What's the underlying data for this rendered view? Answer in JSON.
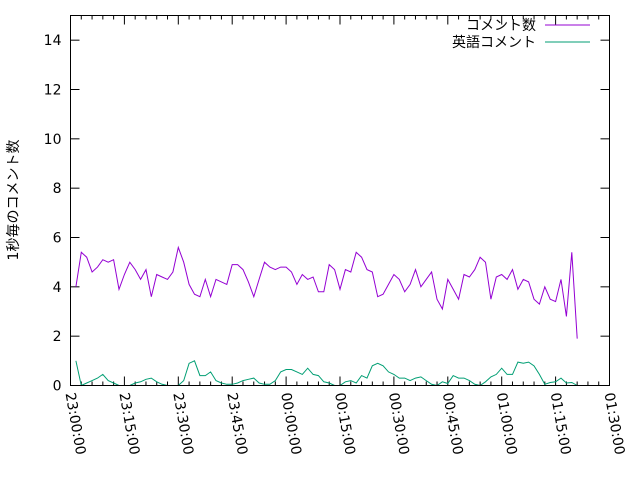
{
  "chart_data": {
    "type": "line",
    "title": "",
    "xlabel": "",
    "ylabel": "1秒毎のコメント数",
    "xlim": [
      "23:00:00",
      "01:30:00"
    ],
    "ylim": [
      0,
      15
    ],
    "x_ticks": [
      "23:00:00",
      "23:15:00",
      "23:30:00",
      "23:45:00",
      "00:00:00",
      "00:15:00",
      "00:30:00",
      "00:45:00",
      "01:00:00",
      "01:15:00",
      "01:30:00"
    ],
    "y_ticks": [
      "0",
      "2",
      "4",
      "6",
      "8",
      "10",
      "12",
      "14"
    ],
    "grid": false,
    "legend_position": "top-right",
    "x": [
      "23:01:30",
      "23:03:00",
      "23:04:30",
      "23:06:00",
      "23:07:30",
      "23:09:00",
      "23:10:30",
      "23:12:00",
      "23:13:30",
      "23:15:00",
      "23:16:30",
      "23:18:00",
      "23:19:30",
      "23:21:00",
      "23:22:30",
      "23:24:00",
      "23:25:30",
      "23:27:00",
      "23:28:30",
      "23:30:00",
      "23:31:30",
      "23:33:00",
      "23:34:30",
      "23:36:00",
      "23:37:30",
      "23:39:00",
      "23:40:30",
      "23:42:00",
      "23:43:30",
      "23:45:00",
      "23:46:30",
      "23:48:00",
      "23:49:30",
      "23:51:00",
      "23:52:30",
      "23:54:00",
      "23:55:30",
      "23:57:00",
      "23:58:30",
      "00:00:00",
      "00:01:30",
      "00:03:00",
      "00:04:30",
      "00:06:00",
      "00:07:30",
      "00:09:00",
      "00:10:30",
      "00:12:00",
      "00:13:30",
      "00:15:00",
      "00:16:30",
      "00:18:00",
      "00:19:30",
      "00:21:00",
      "00:22:30",
      "00:24:00",
      "00:25:30",
      "00:27:00",
      "00:28:30",
      "00:30:00",
      "00:31:30",
      "00:33:00",
      "00:34:30",
      "00:36:00",
      "00:37:30",
      "00:39:00",
      "00:40:30",
      "00:42:00",
      "00:43:30",
      "00:45:00",
      "00:46:30",
      "00:48:00",
      "00:49:30",
      "00:51:00",
      "00:52:30",
      "00:54:00",
      "00:55:30",
      "00:57:00",
      "00:58:30",
      "01:00:00",
      "01:01:30",
      "01:03:00",
      "01:04:30",
      "01:06:00",
      "01:07:30",
      "01:09:00",
      "01:10:30",
      "01:12:00",
      "01:13:30",
      "01:15:00",
      "01:16:30",
      "01:18:00",
      "01:19:30",
      "01:21:00"
    ],
    "series": [
      {
        "name": "コメント数",
        "color": "#9400d3",
        "values": [
          4.0,
          5.4,
          5.2,
          4.6,
          4.8,
          5.1,
          5.0,
          5.1,
          3.9,
          4.5,
          5.0,
          4.7,
          4.3,
          4.7,
          3.6,
          4.5,
          4.4,
          4.3,
          4.6,
          5.6,
          5.0,
          4.1,
          3.7,
          3.6,
          4.3,
          3.6,
          4.3,
          4.2,
          4.1,
          4.9,
          4.9,
          4.7,
          4.2,
          3.6,
          4.3,
          5.0,
          4.8,
          4.7,
          4.8,
          4.8,
          4.6,
          4.1,
          4.5,
          4.3,
          4.4,
          3.8,
          3.8,
          4.9,
          4.7,
          3.9,
          4.7,
          4.6,
          5.4,
          5.2,
          4.7,
          4.6,
          3.6,
          3.7,
          4.1,
          4.5,
          4.3,
          3.8,
          4.1,
          4.7,
          4.0,
          4.3,
          4.6,
          3.5,
          3.1,
          4.3,
          3.9,
          3.5,
          4.5,
          4.4,
          4.7,
          5.2,
          5.0,
          3.5,
          4.4,
          4.5,
          4.3,
          4.7,
          3.9,
          4.3,
          4.2,
          3.5,
          3.3,
          4.0,
          3.5,
          3.4,
          4.3,
          2.8,
          5.4,
          1.9
        ]
      },
      {
        "name": "英語コメント",
        "color": "#009e73",
        "values": [
          1.0,
          0.0,
          0.1,
          0.2,
          0.3,
          0.45,
          0.2,
          0.1,
          0.0,
          0.0,
          0.0,
          0.1,
          0.15,
          0.25,
          0.3,
          0.15,
          0.05,
          0.0,
          0.0,
          0.0,
          0.2,
          0.9,
          1.0,
          0.4,
          0.4,
          0.55,
          0.2,
          0.1,
          0.05,
          0.05,
          0.1,
          0.2,
          0.25,
          0.3,
          0.1,
          0.05,
          0.05,
          0.2,
          0.55,
          0.65,
          0.65,
          0.55,
          0.45,
          0.7,
          0.45,
          0.4,
          0.15,
          0.1,
          0.0,
          0.0,
          0.15,
          0.2,
          0.1,
          0.4,
          0.3,
          0.8,
          0.9,
          0.8,
          0.55,
          0.45,
          0.3,
          0.3,
          0.2,
          0.3,
          0.35,
          0.2,
          0.05,
          0.0,
          0.15,
          0.08,
          0.4,
          0.3,
          0.3,
          0.2,
          0.05,
          0.0,
          0.15,
          0.35,
          0.45,
          0.7,
          0.45,
          0.45,
          0.95,
          0.9,
          0.95,
          0.8,
          0.45,
          0.05,
          0.12,
          0.15,
          0.3,
          0.1,
          0.12,
          0.0
        ]
      }
    ]
  }
}
